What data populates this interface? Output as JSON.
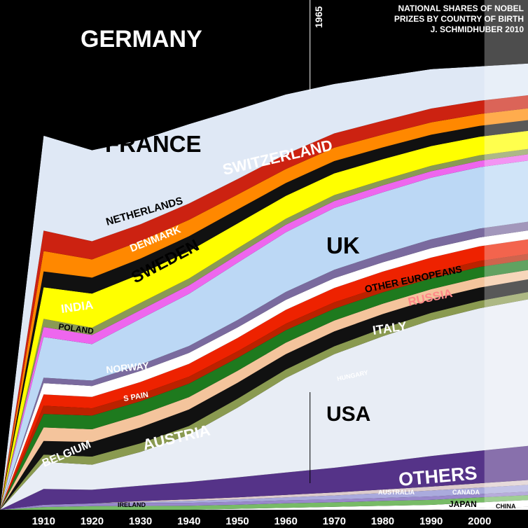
{
  "chart_data": {
    "type": "area",
    "title": [
      "NATIONAL SHARES OF NOBEL",
      "PRIZES BY COUNTRY OF BIRTH",
      "J. SCHMIDHUBER 2010"
    ],
    "xlabel": "",
    "ylabel": "",
    "xlim": [
      1901,
      2010
    ],
    "ylim": [
      0,
      1
    ],
    "x_ticks": [
      1910,
      1920,
      1930,
      1940,
      1950,
      1960,
      1970,
      1980,
      1990,
      2000
    ],
    "marker_year_label": "1965",
    "marker_year": 1965,
    "shaded_after_year": 2001,
    "grid": false,
    "legend": "none",
    "x": [
      1901,
      1910,
      1920,
      1930,
      1940,
      1950,
      1960,
      1970,
      1980,
      1990,
      2000,
      2010
    ],
    "series": [
      {
        "name": "CHINA",
        "color": "#ffffff",
        "values": [
          0.0,
          0.0,
          0.0,
          0.0,
          0.0,
          0.0,
          0.0,
          0.0,
          0.0,
          0.0,
          0.003,
          0.006
        ]
      },
      {
        "name": "JAPAN",
        "color": "#ffffff",
        "values": [
          0.0,
          0.0,
          0.0,
          0.0,
          0.0,
          0.002,
          0.004,
          0.006,
          0.008,
          0.01,
          0.012,
          0.014
        ]
      },
      {
        "name": "IRELAND",
        "color": "#77bb66",
        "values": [
          0.0,
          0.006,
          0.008,
          0.008,
          0.008,
          0.008,
          0.009,
          0.009,
          0.01,
          0.01,
          0.01,
          0.01
        ]
      },
      {
        "name": "",
        "color": "#9988cc",
        "values": [
          0.0,
          0.005,
          0.006,
          0.006,
          0.006,
          0.006,
          0.006,
          0.006,
          0.006,
          0.007,
          0.007,
          0.007
        ]
      },
      {
        "name": "CANADA",
        "color": "#aaaadd",
        "values": [
          0.0,
          0.0,
          0.0,
          0.002,
          0.004,
          0.005,
          0.006,
          0.008,
          0.01,
          0.012,
          0.013,
          0.014
        ]
      },
      {
        "name": "AUSTRALIA",
        "color": "#ddcccc",
        "values": [
          0.0,
          0.0,
          0.0,
          0.002,
          0.003,
          0.004,
          0.005,
          0.006,
          0.007,
          0.008,
          0.009,
          0.01
        ]
      },
      {
        "name": "OTHERS",
        "color": "#553388",
        "values": [
          0.0,
          0.035,
          0.03,
          0.032,
          0.035,
          0.04,
          0.045,
          0.05,
          0.056,
          0.062,
          0.066,
          0.07
        ]
      },
      {
        "name": "USA",
        "color": "#e8edf5",
        "values": [
          0.0,
          0.06,
          0.055,
          0.07,
          0.095,
          0.14,
          0.19,
          0.23,
          0.255,
          0.275,
          0.29,
          0.3
        ]
      },
      {
        "name": "HUNGARY",
        "color": "#8a9a50",
        "values": [
          0.0,
          0.016,
          0.018,
          0.018,
          0.018,
          0.018,
          0.017,
          0.016,
          0.016,
          0.015,
          0.015,
          0.015
        ]
      },
      {
        "name": "AUSTRIA",
        "color": "#111111",
        "values": [
          0.0,
          0.03,
          0.032,
          0.033,
          0.033,
          0.032,
          0.031,
          0.03,
          0.029,
          0.028,
          0.027,
          0.026
        ]
      },
      {
        "name": "BELGIUM",
        "color": "#f4c49c",
        "values": [
          0.0,
          0.03,
          0.028,
          0.026,
          0.025,
          0.024,
          0.023,
          0.022,
          0.021,
          0.02,
          0.02,
          0.019
        ]
      },
      {
        "name": "ITALY",
        "color": "#1e7a1e",
        "values": [
          0.0,
          0.03,
          0.03,
          0.028,
          0.027,
          0.026,
          0.025,
          0.024,
          0.023,
          0.022,
          0.022,
          0.021
        ]
      },
      {
        "name": "SPAIN",
        "color": "#bb2200",
        "values": [
          0.0,
          0.018,
          0.016,
          0.015,
          0.014,
          0.013,
          0.013,
          0.013,
          0.012,
          0.012,
          0.012,
          0.012
        ]
      },
      {
        "name": "RUSSIA",
        "color": "#ee2200",
        "values": [
          0.0,
          0.025,
          0.025,
          0.025,
          0.026,
          0.027,
          0.028,
          0.029,
          0.03,
          0.03,
          0.03,
          0.03
        ]
      },
      {
        "name": "NORWAY",
        "color": "#ffffff",
        "values": [
          0.0,
          0.025,
          0.024,
          0.023,
          0.022,
          0.021,
          0.02,
          0.02,
          0.019,
          0.019,
          0.018,
          0.018
        ]
      },
      {
        "name": "OTHER EUROPEANS",
        "color": "#7a6a9e",
        "values": [
          0.0,
          0.012,
          0.012,
          0.013,
          0.014,
          0.015,
          0.016,
          0.017,
          0.017,
          0.018,
          0.018,
          0.018
        ]
      },
      {
        "name": "UK",
        "color": "#bcd8f5",
        "values": [
          0.0,
          0.09,
          0.08,
          0.095,
          0.105,
          0.115,
          0.12,
          0.125,
          0.125,
          0.125,
          0.125,
          0.125
        ]
      },
      {
        "name": "POLAND",
        "color": "#ee66ee",
        "values": [
          0.0,
          0.022,
          0.02,
          0.018,
          0.017,
          0.016,
          0.015,
          0.014,
          0.014,
          0.013,
          0.013,
          0.013
        ]
      },
      {
        "name": "INDIA",
        "color": "#8a9a55",
        "values": [
          0.0,
          0.018,
          0.016,
          0.015,
          0.014,
          0.013,
          0.012,
          0.012,
          0.011,
          0.011,
          0.011,
          0.011
        ]
      },
      {
        "name": "SWEDEN",
        "color": "#ffff00",
        "values": [
          0.0,
          0.07,
          0.075,
          0.06,
          0.055,
          0.05,
          0.046,
          0.044,
          0.042,
          0.04,
          0.038,
          0.037
        ]
      },
      {
        "name": "DENMARK",
        "color": "#111111",
        "values": [
          0.0,
          0.035,
          0.035,
          0.032,
          0.03,
          0.028,
          0.026,
          0.025,
          0.024,
          0.023,
          0.022,
          0.022
        ]
      },
      {
        "name": "NETHERLANDS",
        "color": "#ff8800",
        "values": [
          0.0,
          0.045,
          0.04,
          0.036,
          0.033,
          0.03,
          0.028,
          0.027,
          0.026,
          0.025,
          0.024,
          0.024
        ]
      },
      {
        "name": "SWITZERLAND",
        "color": "#cc2211",
        "values": [
          0.0,
          0.045,
          0.04,
          0.035,
          0.033,
          0.031,
          0.03,
          0.029,
          0.028,
          0.028,
          0.027,
          0.027
        ]
      },
      {
        "name": "FRANCE",
        "color": "#dfe8f5",
        "values": [
          0.0,
          0.21,
          0.2,
          0.175,
          0.16,
          0.14,
          0.12,
          0.1,
          0.09,
          0.08,
          0.07,
          0.065
        ]
      },
      {
        "name": "GERMANY",
        "color": "#000000",
        "values": [
          1.0,
          0.3,
          0.33,
          0.29,
          0.25,
          0.22,
          0.19,
          0.17,
          0.155,
          0.14,
          0.135,
          0.13
        ]
      }
    ],
    "labels": {
      "germany": "GERMANY",
      "france": "FRANCE",
      "switzerland": "SWITZERLAND",
      "netherlands": "NETHERLANDS",
      "denmark": "DENMARK",
      "sweden": "SWEDEN",
      "uk": "UK",
      "india": "INDIA",
      "poland": "POLAND",
      "other_europeans": "OTHER EUROPEANS",
      "russia": "RUSSIA",
      "italy": "ITALY",
      "norway": "NORWAY",
      "spain": "S PAIN",
      "hungary": "HUNGARY",
      "usa": "USA",
      "austria": "AUSTRIA",
      "belgium": "BELGIUM",
      "others": "OTHERS",
      "australia": "AUSTRALIA",
      "canada": "CANADA",
      "ireland": "IRELAND",
      "japan": "JAPAN",
      "china": "CHINA"
    }
  }
}
